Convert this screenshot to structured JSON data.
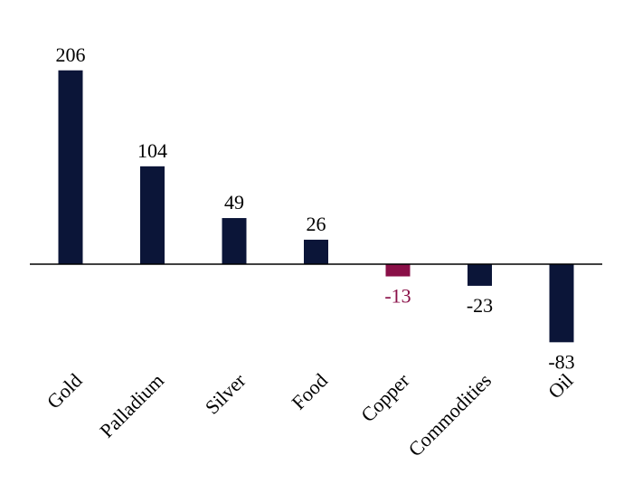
{
  "chart_data": {
    "type": "bar",
    "title": "",
    "xlabel": "",
    "ylabel": "",
    "categories": [
      "Gold",
      "Palladium",
      "Silver",
      "Food",
      "Copper",
      "Commodities",
      "Oil"
    ],
    "values": [
      206,
      104,
      49,
      26,
      -13,
      -23,
      -83
    ],
    "value_labels": [
      "206",
      "104",
      "49",
      "26",
      "-13",
      "-23",
      "-83"
    ],
    "ylim": [
      -110,
      235
    ],
    "grid": false,
    "legend": "none",
    "colors": {
      "default_bar": "#0b1538",
      "highlight_bar": "#8a1048",
      "default_label": "#000000",
      "highlight_label": "#8a1048",
      "axis": "#000000"
    },
    "highlight_categories": [
      "Copper"
    ]
  }
}
